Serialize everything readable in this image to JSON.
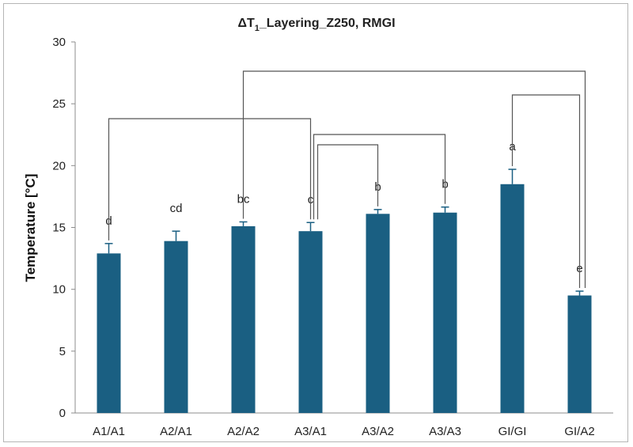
{
  "chart_data": {
    "type": "bar",
    "title_prefix": "ΔT",
    "title_sub": "1",
    "title_suffix": "_Layering_Z250, RMGI",
    "xlabel": "",
    "ylabel": "Temperature [°C]",
    "ylim": [
      0,
      30
    ],
    "yticks": [
      "0",
      "5",
      "10",
      "15",
      "20",
      "25",
      "30"
    ],
    "categories": [
      "A1/A1",
      "A2/A1",
      "A2/A2",
      "A3/A1",
      "A3/A2",
      "A3/A3",
      "GI/GI",
      "GI/A2"
    ],
    "values": [
      12.9,
      13.9,
      15.1,
      14.7,
      16.1,
      16.2,
      18.5,
      9.5
    ],
    "errors": [
      0.8,
      0.8,
      0.35,
      0.7,
      0.35,
      0.45,
      1.2,
      0.35
    ],
    "letters": [
      "d",
      "cd",
      "bc",
      "c",
      "b",
      "b",
      "a",
      "e"
    ],
    "bar_color": "#1a5f82",
    "grid": false,
    "brackets": [
      {
        "from": "A1/A1",
        "to": "A3/A1"
      },
      {
        "from": "A2/A2",
        "to": "GI/A2"
      },
      {
        "from": "A3/A1",
        "to": "A3/A2"
      },
      {
        "from": "A3/A1",
        "to": "A3/A3"
      },
      {
        "from": "GI/GI",
        "to": "GI/A2"
      }
    ]
  }
}
